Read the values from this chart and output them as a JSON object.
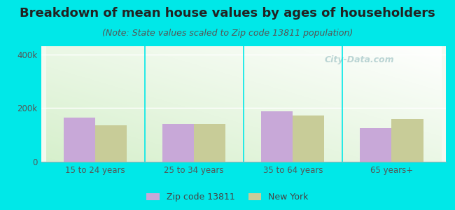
{
  "title": "Breakdown of mean house values by ages of householders",
  "subtitle": "(Note: State values scaled to Zip code 13811 population)",
  "categories": [
    "15 to 24 years",
    "25 to 34 years",
    "35 to 64 years",
    "65 years+"
  ],
  "zip_values": [
    163000,
    140000,
    188000,
    125000
  ],
  "ny_values": [
    135000,
    140000,
    172000,
    158000
  ],
  "zip_color": "#c8a8d8",
  "ny_color": "#c8cc98",
  "background_outer": "#00e8e8",
  "background_chart_tl": "#d8f0c8",
  "background_chart_br": "#f4faf0",
  "ylim": [
    0,
    430000
  ],
  "yticks": [
    0,
    200000,
    400000
  ],
  "ytick_labels": [
    "0",
    "200k",
    "400k"
  ],
  "legend_zip_label": "Zip code 13811",
  "legend_ny_label": "New York",
  "bar_width": 0.32,
  "title_fontsize": 13,
  "subtitle_fontsize": 9,
  "tick_fontsize": 8.5,
  "legend_fontsize": 9,
  "watermark_text": "City-Data.com"
}
